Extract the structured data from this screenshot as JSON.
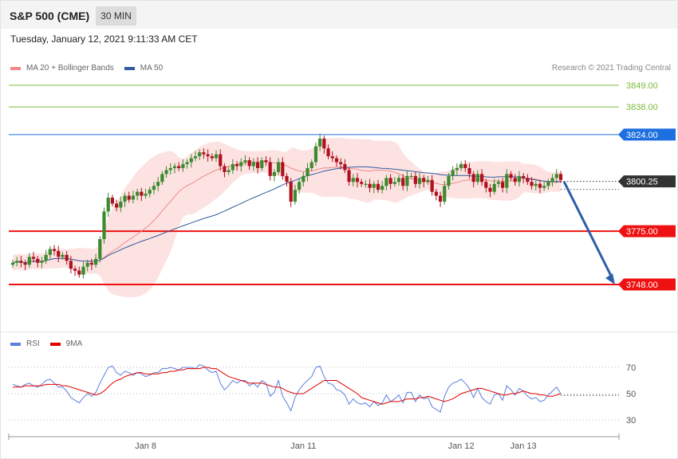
{
  "header": {
    "title": "S&P 500 (CME)",
    "timeframe": "30 MIN"
  },
  "datetime": "Tuesday, January 12, 2021 9:11:33 AM CET",
  "legend": [
    {
      "label": "MA 20 + Bollinger Bands",
      "color": "#f08a8a"
    },
    {
      "label": "MA 50",
      "color": "#2f5c9c"
    }
  ],
  "credit": "Research © 2021 Trading Central",
  "rsi_legend": [
    {
      "label": "RSI",
      "color": "#5b7fdc"
    },
    {
      "label": "9MA",
      "color": "#e00000"
    }
  ],
  "chart_data": [
    {
      "type": "candlestick",
      "price_axis": {
        "min": 3748,
        "max": 3849
      },
      "current_price": {
        "value": 3800.25,
        "label": "3800.25",
        "color": "#333333"
      },
      "levels": [
        {
          "value": 3849.0,
          "label": "3849.00",
          "color": "#7dbb3c",
          "kind": "target"
        },
        {
          "value": 3838.0,
          "label": "3838.00",
          "color": "#7dbb3c",
          "kind": "target"
        },
        {
          "value": 3824.0,
          "label": "3824.00",
          "color": "#1e6fe0",
          "kind": "pivot"
        },
        {
          "value": 3775.0,
          "label": "3775.00",
          "color": "#ee1111",
          "kind": "support"
        },
        {
          "value": 3748.0,
          "label": "3748.00",
          "color": "#ee1111",
          "kind": "support"
        }
      ],
      "projection": {
        "from": 3800.25,
        "to": 3748,
        "color": "#2f5ea8"
      },
      "x_ticks": [
        "Jan 8",
        "Jan 11",
        "Jan 12",
        "Jan 13"
      ],
      "closes": [
        3759,
        3760,
        3759,
        3758,
        3762,
        3761,
        3759,
        3760,
        3763,
        3766,
        3765,
        3762,
        3763,
        3760,
        3756,
        3755,
        3753,
        3757,
        3759,
        3758,
        3761,
        3771,
        3785,
        3792,
        3789,
        3787,
        3790,
        3793,
        3791,
        3793,
        3795,
        3793,
        3794,
        3796,
        3798,
        3800,
        3804,
        3806,
        3807,
        3808,
        3807,
        3809,
        3810,
        3812,
        3813,
        3815,
        3814,
        3813,
        3812,
        3814,
        3808,
        3805,
        3806,
        3809,
        3808,
        3810,
        3811,
        3808,
        3810,
        3807,
        3811,
        3810,
        3803,
        3805,
        3810,
        3803,
        3800,
        3790,
        3796,
        3800,
        3803,
        3807,
        3810,
        3818,
        3822,
        3817,
        3813,
        3812,
        3810,
        3809,
        3806,
        3800,
        3802,
        3800,
        3799,
        3799,
        3797,
        3799,
        3796,
        3798,
        3802,
        3799,
        3800,
        3802,
        3798,
        3803,
        3803,
        3799,
        3802,
        3800,
        3801,
        3795,
        3793,
        3790,
        3798,
        3803,
        3806,
        3807,
        3809,
        3807,
        3804,
        3800,
        3804,
        3800,
        3797,
        3795,
        3799,
        3800,
        3797,
        3804,
        3802,
        3800,
        3803,
        3802,
        3800,
        3798,
        3799,
        3797,
        3798,
        3800,
        3802,
        3804,
        3801
      ]
    },
    {
      "type": "line",
      "indicator": "RSI",
      "y_ticks": [
        70,
        50,
        30
      ],
      "rsi": [
        57,
        56,
        55,
        57,
        58,
        56,
        55,
        57,
        60,
        61,
        58,
        55,
        55,
        52,
        47,
        45,
        43,
        47,
        50,
        48,
        51,
        58,
        64,
        70,
        71,
        66,
        64,
        67,
        66,
        64,
        66,
        65,
        63,
        64,
        66,
        66,
        69,
        69,
        70,
        69,
        68,
        70,
        70,
        70,
        69,
        72,
        71,
        68,
        66,
        67,
        58,
        53,
        56,
        60,
        58,
        60,
        60,
        56,
        58,
        55,
        60,
        58,
        48,
        51,
        60,
        48,
        43,
        37,
        47,
        53,
        57,
        60,
        63,
        70,
        71,
        63,
        58,
        57,
        53,
        52,
        49,
        42,
        46,
        43,
        42,
        43,
        40,
        44,
        41,
        43,
        49,
        44,
        46,
        49,
        43,
        51,
        51,
        44,
        49,
        46,
        47,
        40,
        38,
        36,
        48,
        55,
        58,
        59,
        61,
        58,
        54,
        47,
        54,
        47,
        44,
        42,
        49,
        50,
        45,
        56,
        53,
        49,
        54,
        52,
        48,
        46,
        47,
        44,
        45,
        49,
        52,
        55,
        50
      ],
      "ma": [
        55,
        55,
        55,
        56,
        56,
        56,
        56,
        56,
        57,
        57,
        57,
        57,
        56,
        56,
        55,
        54,
        53,
        52,
        51,
        50,
        49,
        50,
        52,
        55,
        58,
        60,
        61,
        63,
        64,
        65,
        66,
        66,
        65,
        65,
        65,
        65,
        66,
        66,
        67,
        67,
        68,
        68,
        69,
        69,
        69,
        69,
        70,
        70,
        69,
        69,
        67,
        65,
        63,
        62,
        61,
        60,
        59,
        58,
        58,
        58,
        58,
        57,
        56,
        55,
        55,
        54,
        52,
        51,
        50,
        50,
        50,
        52,
        54,
        56,
        58,
        60,
        60,
        60,
        60,
        58,
        56,
        54,
        52,
        50,
        47,
        46,
        45,
        44,
        43,
        42,
        43,
        44,
        44,
        44,
        45,
        46,
        46,
        46,
        47,
        47,
        48,
        47,
        46,
        45,
        44,
        45,
        46,
        48,
        50,
        51,
        52,
        53,
        54,
        54,
        53,
        52,
        51,
        50,
        49,
        49,
        50,
        50,
        51,
        52,
        51,
        50,
        50,
        49,
        49,
        48,
        48,
        49,
        50
      ]
    }
  ]
}
